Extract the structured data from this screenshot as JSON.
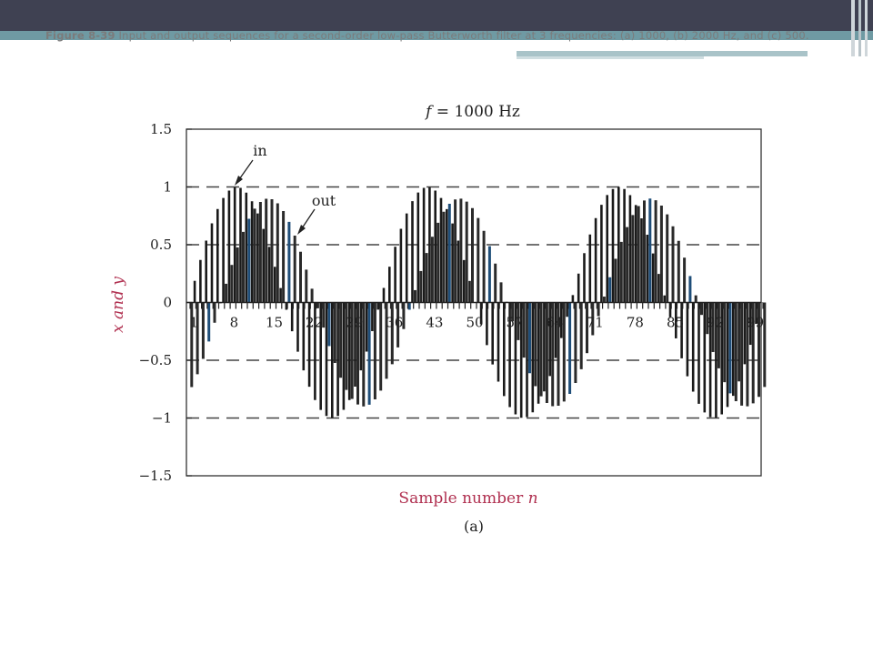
{
  "slide": {
    "figure_label": "Figure 8-39",
    "caption_text": "Input and output sequences for a second-order low-pass Butterworth filter at 3 frequencies: (a) 1000, (b) 2000 Hz, and (c) 500."
  },
  "colors": {
    "header_band": "#3f4152",
    "accent_strip": "#6f9aa3",
    "input_stem": "#1a1a1a",
    "output_stem": "#1f4e79",
    "axis_label": "#b03050"
  },
  "chart_data": {
    "type": "stem",
    "title_var": "f",
    "title_rest": " = 1000 Hz",
    "xlabel_text": "Sample number ",
    "xlabel_var": "n",
    "ylabel": "x and y",
    "sublabel": "(a)",
    "ylim": [
      -1.5,
      1.5
    ],
    "xlim": [
      0,
      101
    ],
    "yticks": [
      1.5,
      1,
      0.5,
      0,
      -0.5,
      -1,
      -1.5
    ],
    "ytick_labels": [
      "1.5",
      "1",
      "0.5",
      "0",
      "−0.5",
      "−1",
      "−1.5"
    ],
    "xticks": [
      1,
      8,
      15,
      22,
      29,
      36,
      43,
      50,
      57,
      64,
      71,
      78,
      85,
      92,
      99
    ],
    "xtick_labels": [
      "1",
      "8",
      "15",
      "22",
      "29",
      "36",
      "43",
      "50",
      "57",
      "64",
      "71",
      "78",
      "85",
      "92",
      "99"
    ],
    "dashed_gridlines_y": [
      1,
      0.5,
      -0.5,
      -1
    ],
    "samples_per_cycle": 33.33,
    "annotations": [
      {
        "text": "in"
      },
      {
        "text": "out"
      }
    ],
    "series": [
      {
        "name": "in",
        "n": "0..100",
        "formula": "sin(2*pi*1000*n/33333)"
      },
      {
        "name": "out",
        "n": "0..100",
        "formula": "0.9*sin(2*pi*1000*n/33333 - 0.95)"
      }
    ]
  }
}
